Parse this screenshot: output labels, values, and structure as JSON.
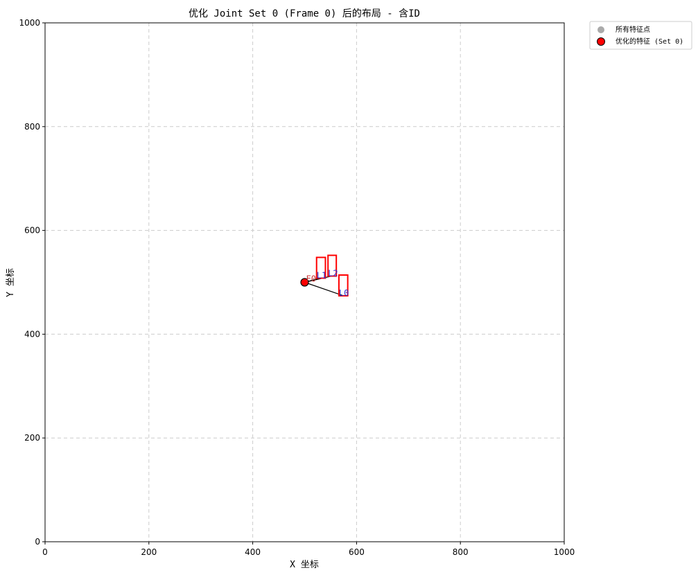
{
  "chart_data": {
    "type": "scatter",
    "title": "优化 Joint Set 0 (Frame 0) 后的布局 - 含ID",
    "xlabel": "X 坐标",
    "ylabel": "Y 坐标",
    "xlim": [
      0,
      1000
    ],
    "ylim": [
      0,
      1000
    ],
    "xticks": [
      0,
      200,
      400,
      600,
      800,
      1000
    ],
    "yticks": [
      0,
      200,
      400,
      600,
      800,
      1000
    ],
    "grid": true,
    "legend": {
      "placement": "outside-top-right",
      "entries": [
        {
          "label": "所有特征点",
          "color": "#aaaaaa"
        },
        {
          "label": "优化的特征 (Set 0)",
          "color": "#ff0000"
        }
      ]
    },
    "points": [
      {
        "label": "F0",
        "x": 500,
        "y": 500,
        "series": "优化的特征 (Set 0)"
      }
    ],
    "rects": [
      {
        "label": "L1",
        "x": 523,
        "y": 508,
        "w": 17,
        "h": 40
      },
      {
        "label": "L2",
        "x": 545,
        "y": 512,
        "w": 16,
        "h": 40
      },
      {
        "label": "L0",
        "x": 566,
        "y": 474,
        "w": 17,
        "h": 40
      }
    ],
    "links": [
      {
        "from": [
          500,
          500
        ],
        "to": [
          530,
          508
        ]
      },
      {
        "from": [
          500,
          500
        ],
        "to": [
          552,
          512
        ]
      },
      {
        "from": [
          500,
          500
        ],
        "to": [
          575,
          474
        ]
      }
    ],
    "colors": {
      "rect": "#ff0000",
      "id_label": "#2e2ecc",
      "point_label": "#cc3333",
      "grid": "#cccccc"
    }
  }
}
